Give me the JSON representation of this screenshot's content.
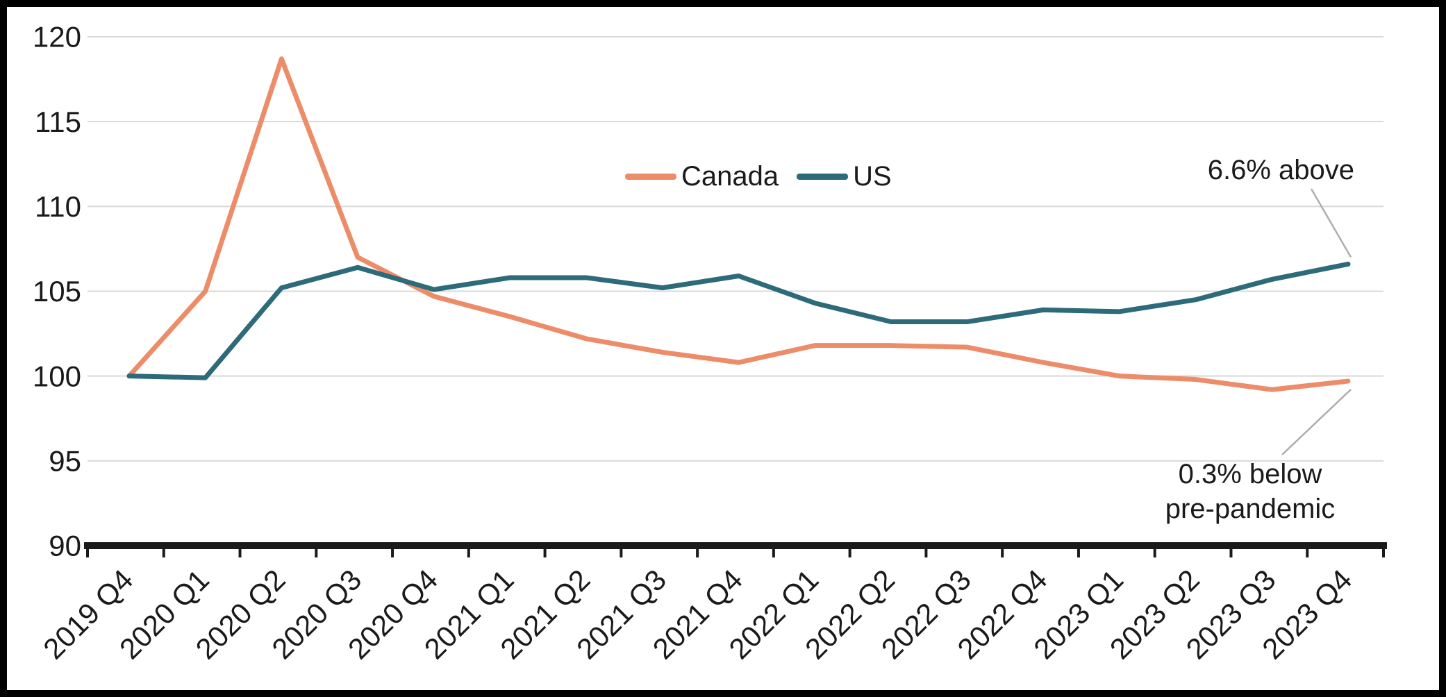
{
  "chart_data": {
    "type": "line",
    "title": "",
    "xlabel": "",
    "ylabel": "",
    "categories": [
      "2019 Q4",
      "2020 Q1",
      "2020 Q2",
      "2020 Q3",
      "2020 Q4",
      "2021 Q1",
      "2021 Q2",
      "2021 Q3",
      "2021 Q4",
      "2022 Q1",
      "2022 Q2",
      "2022 Q3",
      "2022 Q4",
      "2023 Q1",
      "2023 Q2",
      "2023 Q3",
      "2023 Q4"
    ],
    "series": [
      {
        "name": "Canada",
        "color": "#EC8C68",
        "values": [
          100.0,
          105.0,
          118.7,
          107.0,
          104.7,
          103.5,
          102.2,
          101.4,
          100.8,
          101.8,
          101.8,
          101.7,
          100.8,
          100.0,
          99.8,
          99.2,
          99.7
        ]
      },
      {
        "name": "US",
        "color": "#2E6B7A",
        "values": [
          100.0,
          99.9,
          105.2,
          106.4,
          105.1,
          105.8,
          105.8,
          105.2,
          105.9,
          104.3,
          103.2,
          103.2,
          103.9,
          103.8,
          104.5,
          105.7,
          106.6
        ]
      }
    ],
    "ylim": [
      90,
      120
    ],
    "yticks": [
      90,
      95,
      100,
      105,
      110,
      115,
      120
    ],
    "grid": "horizontal",
    "legend_position": "top-center",
    "annotations": [
      {
        "text": "6.6% above",
        "target_series": "US",
        "target_point": "2023 Q4"
      },
      {
        "text": "0.3% below\npre-pandemic",
        "target_series": "Canada",
        "target_point": "2023 Q4"
      }
    ],
    "colors": {
      "grid": "#D9D9D9",
      "axis": "#1A1A1A",
      "text": "#1A1A1A",
      "leader": "#ADADAD"
    }
  }
}
